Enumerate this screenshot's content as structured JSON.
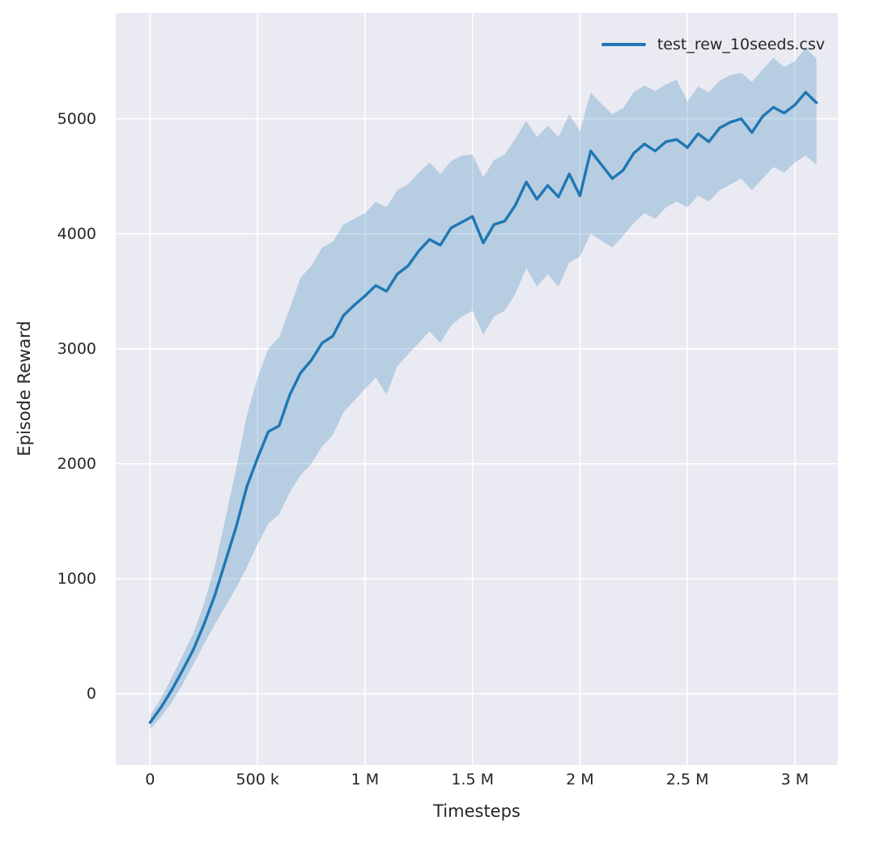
{
  "figure": {
    "xlabel": "Timesteps",
    "ylabel": "Episode Reward",
    "legend": {
      "label": "test_rew_10seeds.csv"
    }
  },
  "chart_data": {
    "type": "line",
    "title": "",
    "xlabel": "Timesteps",
    "ylabel": "Episode Reward",
    "legend": [
      "test_rew_10seeds.csv"
    ],
    "legend_position": "upper right",
    "grid": true,
    "background_color": "#eaeaf2",
    "grid_color": "#ffffff",
    "line_color": "#1f77b4",
    "band_color": "#1f77b4",
    "band_opacity": 0.25,
    "xlim": [
      -160000,
      3200000
    ],
    "ylim": [
      -620,
      5920
    ],
    "xticks": [
      {
        "value": 0,
        "label": "0"
      },
      {
        "value": 500000,
        "label": "500 k"
      },
      {
        "value": 1000000,
        "label": "1 M"
      },
      {
        "value": 1500000,
        "label": "1.5 M"
      },
      {
        "value": 2000000,
        "label": "2 M"
      },
      {
        "value": 2500000,
        "label": "2.5 M"
      },
      {
        "value": 3000000,
        "label": "3 M"
      }
    ],
    "yticks": [
      {
        "value": 0,
        "label": "0"
      },
      {
        "value": 1000,
        "label": "1000"
      },
      {
        "value": 2000,
        "label": "2000"
      },
      {
        "value": 3000,
        "label": "3000"
      },
      {
        "value": 4000,
        "label": "4000"
      },
      {
        "value": 5000,
        "label": "5000"
      }
    ],
    "x": [
      0,
      50000,
      100000,
      150000,
      200000,
      250000,
      300000,
      350000,
      400000,
      450000,
      500000,
      550000,
      600000,
      650000,
      700000,
      750000,
      800000,
      850000,
      900000,
      950000,
      1000000,
      1050000,
      1100000,
      1150000,
      1200000,
      1250000,
      1300000,
      1350000,
      1400000,
      1450000,
      1500000,
      1550000,
      1600000,
      1650000,
      1700000,
      1750000,
      1800000,
      1850000,
      1900000,
      1950000,
      2000000,
      2050000,
      2100000,
      2150000,
      2200000,
      2250000,
      2300000,
      2350000,
      2400000,
      2450000,
      2500000,
      2550000,
      2600000,
      2650000,
      2700000,
      2750000,
      2800000,
      2850000,
      2900000,
      2950000,
      3000000,
      3050000,
      3100000
    ],
    "series": [
      {
        "name": "test_rew_10seeds.csv",
        "mean": [
          -250,
          -120,
          30,
          200,
          380,
          600,
          850,
          1150,
          1450,
          1800,
          2050,
          2280,
          2330,
          2600,
          2790,
          2900,
          3050,
          3110,
          3290,
          3380,
          3460,
          3550,
          3500,
          3650,
          3720,
          3850,
          3950,
          3900,
          4050,
          4100,
          4150,
          3920,
          4080,
          4110,
          4250,
          4450,
          4300,
          4420,
          4320,
          4520,
          4330,
          4720,
          4600,
          4480,
          4550,
          4700,
          4780,
          4720,
          4800,
          4820,
          4750,
          4870,
          4800,
          4920,
          4970,
          5000,
          4880,
          5020,
          5100,
          5050,
          5120,
          5230,
          5140
        ],
        "lower": [
          -310,
          -200,
          -80,
          80,
          250,
          430,
          600,
          760,
          920,
          1100,
          1300,
          1480,
          1560,
          1750,
          1900,
          2000,
          2150,
          2250,
          2450,
          2550,
          2650,
          2750,
          2600,
          2850,
          2950,
          3050,
          3150,
          3050,
          3200,
          3280,
          3330,
          3120,
          3280,
          3330,
          3480,
          3700,
          3540,
          3650,
          3540,
          3750,
          3800,
          4000,
          3940,
          3880,
          3980,
          4090,
          4180,
          4130,
          4230,
          4280,
          4230,
          4330,
          4280,
          4380,
          4430,
          4480,
          4380,
          4480,
          4580,
          4530,
          4620,
          4680,
          4600
        ],
        "upper": [
          -190,
          -40,
          140,
          330,
          520,
          780,
          1100,
          1520,
          1960,
          2420,
          2750,
          3000,
          3100,
          3350,
          3620,
          3720,
          3880,
          3930,
          4080,
          4130,
          4180,
          4280,
          4230,
          4380,
          4430,
          4530,
          4620,
          4520,
          4630,
          4680,
          4690,
          4490,
          4640,
          4690,
          4830,
          4980,
          4840,
          4940,
          4840,
          5040,
          4890,
          5230,
          5130,
          5040,
          5090,
          5230,
          5290,
          5240,
          5300,
          5340,
          5150,
          5280,
          5230,
          5330,
          5380,
          5400,
          5320,
          5430,
          5530,
          5450,
          5500,
          5620,
          5520
        ]
      }
    ]
  }
}
